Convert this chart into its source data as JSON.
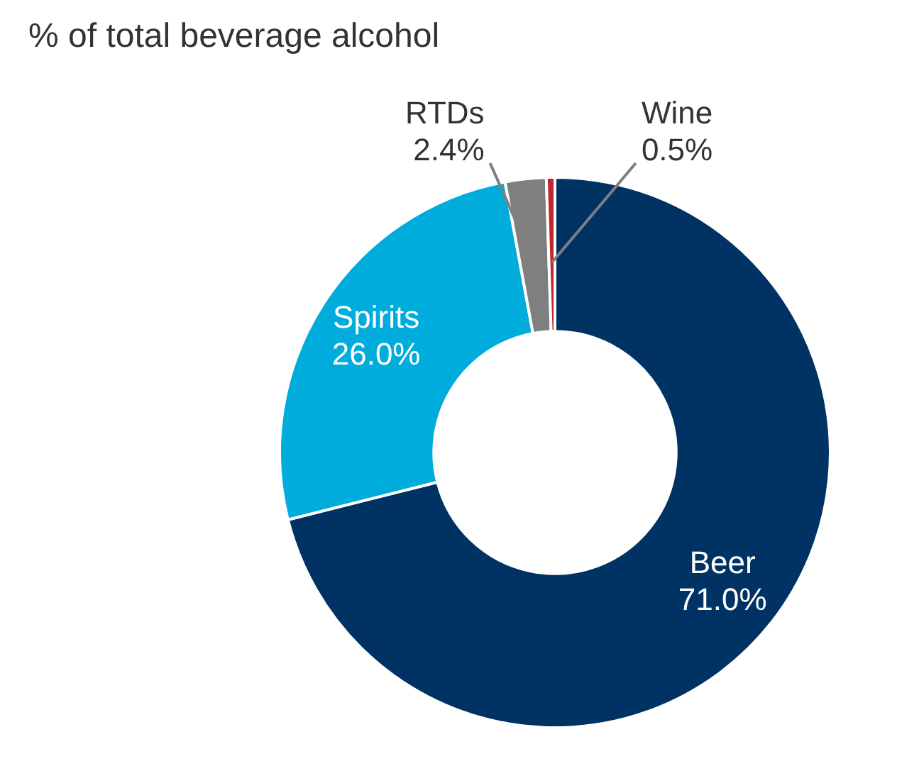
{
  "chart_data": {
    "type": "donut",
    "title": "% of total beverage alcohol",
    "categories": [
      "Beer",
      "Spirits",
      "RTDs",
      "Wine"
    ],
    "values": [
      71.0,
      26.0,
      2.4,
      0.5
    ],
    "value_labels": [
      "71.0%",
      "26.0%",
      "2.4%",
      "0.5%"
    ],
    "colors": [
      "#003263",
      "#00acdc",
      "#7f7f7f",
      "#c0272d"
    ],
    "legend": false
  }
}
